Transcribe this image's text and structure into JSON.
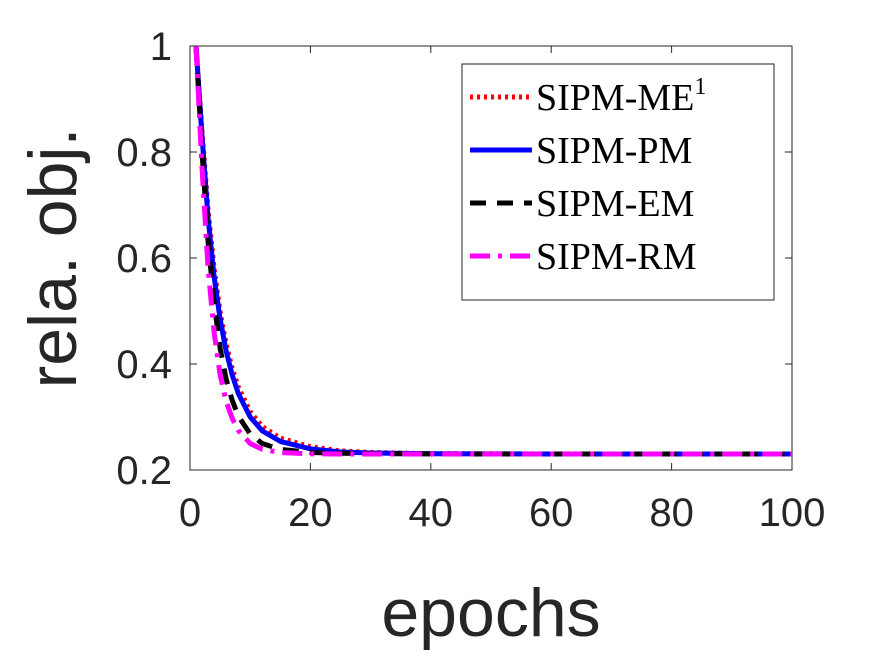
{
  "chart_data": {
    "type": "line",
    "title": "",
    "xlabel": "epochs",
    "ylabel": "rela. obj.",
    "xlim": [
      0,
      100
    ],
    "ylim": [
      0.2,
      1.0
    ],
    "xticks": [
      0,
      20,
      40,
      60,
      80,
      100
    ],
    "yticks": [
      0.2,
      0.4,
      0.6,
      0.8,
      1.0
    ],
    "xtick_labels": [
      "0",
      "20",
      "40",
      "60",
      "80",
      "100"
    ],
    "ytick_labels": [
      "0.2",
      "0.4",
      "0.6",
      "0.8",
      "1"
    ],
    "grid": false,
    "legend_position": "top-right",
    "x": [
      1,
      2,
      3,
      4,
      5,
      6,
      7,
      8,
      10,
      12,
      15,
      20,
      25,
      30,
      40,
      50,
      60,
      80,
      100
    ],
    "series": [
      {
        "name": "SIPM-ME",
        "legend_label": "SIPM-ME",
        "legend_superscript": "1",
        "color": "#ff0000",
        "dash": "dotted",
        "values": [
          1.0,
          0.84,
          0.69,
          0.58,
          0.498,
          0.438,
          0.392,
          0.357,
          0.31,
          0.282,
          0.26,
          0.244,
          0.236,
          0.233,
          0.231,
          0.2305,
          0.2303,
          0.2302,
          0.2302
        ]
      },
      {
        "name": "SIPM-PM",
        "legend_label": "SIPM-PM",
        "legend_superscript": "",
        "color": "#0000ff",
        "dash": "solid",
        "values": [
          1.0,
          0.83,
          0.675,
          0.565,
          0.485,
          0.425,
          0.38,
          0.345,
          0.3,
          0.274,
          0.254,
          0.24,
          0.234,
          0.232,
          0.2305,
          0.2303,
          0.2302,
          0.2302,
          0.2302
        ]
      },
      {
        "name": "SIPM-EM",
        "legend_label": "SIPM-EM",
        "legend_superscript": "",
        "color": "#000000",
        "dash": "dashed",
        "values": [
          1.0,
          0.8,
          0.63,
          0.515,
          0.43,
          0.372,
          0.332,
          0.302,
          0.268,
          0.25,
          0.239,
          0.233,
          0.2315,
          0.231,
          0.2304,
          0.2302,
          0.2302,
          0.2302,
          0.2302
        ]
      },
      {
        "name": "SIPM-RM",
        "legend_label": "SIPM-RM",
        "legend_superscript": "",
        "color": "#ff00ff",
        "dash": "dashdot",
        "values": [
          1.0,
          0.77,
          0.58,
          0.46,
          0.38,
          0.33,
          0.298,
          0.275,
          0.25,
          0.239,
          0.233,
          0.2305,
          0.2302,
          0.2302,
          0.2302,
          0.2302,
          0.2302,
          0.2302,
          0.2302
        ]
      }
    ]
  }
}
